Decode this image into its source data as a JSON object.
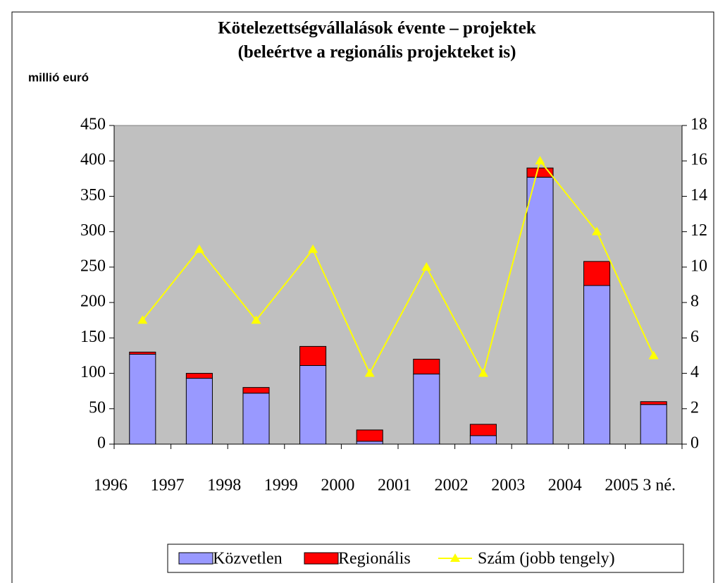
{
  "chart_data": {
    "type": "bar",
    "stacked": true,
    "title": "Kötelezettségvállalások évente – projektek",
    "subtitle": "(beleértve a regionális projekteket is)",
    "y_label": "millió euró",
    "categories": [
      "1996",
      "1997",
      "1998",
      "1999",
      "2000",
      "2001",
      "2002",
      "2003",
      "2004",
      "2005 3 né."
    ],
    "series": [
      {
        "name": "Közvetlen",
        "color": "#9999ff",
        "type": "bar",
        "values": [
          127,
          93,
          72,
          111,
          4,
          99,
          12,
          377,
          224,
          56
        ]
      },
      {
        "name": "Regionális",
        "color": "#ff0000",
        "type": "bar",
        "values": [
          3,
          7,
          8,
          27,
          16,
          21,
          16,
          13,
          34,
          4
        ]
      },
      {
        "name": "Szám (jobb tengely)",
        "color": "#ffff00",
        "type": "line",
        "axis": "y2",
        "values": [
          7,
          11,
          7,
          11,
          4,
          10,
          4,
          16,
          12,
          5
        ]
      }
    ],
    "ylim": [
      0,
      450
    ],
    "yticks": [
      0,
      50,
      100,
      150,
      200,
      250,
      300,
      350,
      400,
      450
    ],
    "y2lim": [
      0,
      18
    ],
    "y2ticks": [
      0,
      2,
      4,
      6,
      8,
      10,
      12,
      14,
      16,
      18
    ],
    "plot_background": "#c0c0c0",
    "legend": "bottom"
  }
}
